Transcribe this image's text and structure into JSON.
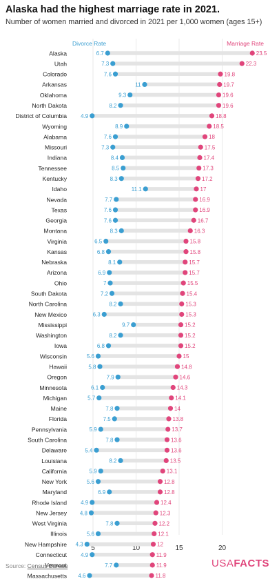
{
  "header": {
    "title": "Alaska had the highest marriage rate in 2021.",
    "subtitle": "Number of women married and divorced in 2021 per 1,000 women (ages 15+)"
  },
  "footer": {
    "source_prefix": "Source: ",
    "source_link": "Census Bureau",
    "logo_usa": "USA",
    "logo_facts": "FACTS"
  },
  "colors": {
    "divorce": "#3a9ed1",
    "marriage": "#e0457b",
    "track": "#e4e4e4",
    "grid": "#e9e9e9"
  },
  "chart_data": {
    "type": "dot-range",
    "xlim": [
      2.2,
      25.4
    ],
    "x_ticks": [
      5,
      10,
      15,
      20
    ],
    "grid": true,
    "legend_placement": "top",
    "series": [
      {
        "name": "Divorce Rate",
        "key": "divorce"
      },
      {
        "name": "Marriage Rate",
        "key": "marriage"
      }
    ],
    "rows": [
      {
        "state": "Alaska",
        "divorce": 6.7,
        "marriage": 23.5
      },
      {
        "state": "Utah",
        "divorce": 7.3,
        "marriage": 22.3
      },
      {
        "state": "Colorado",
        "divorce": 7.6,
        "marriage": 19.8
      },
      {
        "state": "Arkansas",
        "divorce": 11,
        "marriage": 19.7
      },
      {
        "state": "Oklahoma",
        "divorce": 9.3,
        "marriage": 19.6
      },
      {
        "state": "North Dakota",
        "divorce": 8.2,
        "marriage": 19.6
      },
      {
        "state": "District of Columbia",
        "divorce": 4.9,
        "marriage": 18.8
      },
      {
        "state": "Wyoming",
        "divorce": 8.9,
        "marriage": 18.5
      },
      {
        "state": "Alabama",
        "divorce": 7.6,
        "marriage": 18
      },
      {
        "state": "Missouri",
        "divorce": 7.3,
        "marriage": 17.5
      },
      {
        "state": "Indiana",
        "divorce": 8.4,
        "marriage": 17.4
      },
      {
        "state": "Tennessee",
        "divorce": 8.5,
        "marriage": 17.3
      },
      {
        "state": "Kentucky",
        "divorce": 8.3,
        "marriage": 17.2
      },
      {
        "state": "Idaho",
        "divorce": 11.1,
        "marriage": 17
      },
      {
        "state": "Nevada",
        "divorce": 7.7,
        "marriage": 16.9
      },
      {
        "state": "Texas",
        "divorce": 7.6,
        "marriage": 16.9
      },
      {
        "state": "Georgia",
        "divorce": 7.6,
        "marriage": 16.7
      },
      {
        "state": "Montana",
        "divorce": 8.3,
        "marriage": 16.3
      },
      {
        "state": "Virginia",
        "divorce": 6.5,
        "marriage": 15.8
      },
      {
        "state": "Kansas",
        "divorce": 6.8,
        "marriage": 15.8
      },
      {
        "state": "Nebraska",
        "divorce": 8.1,
        "marriage": 15.7
      },
      {
        "state": "Arizona",
        "divorce": 6.9,
        "marriage": 15.7
      },
      {
        "state": "Ohio",
        "divorce": 7,
        "marriage": 15.5
      },
      {
        "state": "South Dakota",
        "divorce": 7.2,
        "marriage": 15.4
      },
      {
        "state": "North Carolina",
        "divorce": 8.2,
        "marriage": 15.3
      },
      {
        "state": "New Mexico",
        "divorce": 6.3,
        "marriage": 15.3
      },
      {
        "state": "Mississippi",
        "divorce": 9.7,
        "marriage": 15.2
      },
      {
        "state": "Washington",
        "divorce": 8.2,
        "marriage": 15.2
      },
      {
        "state": "Iowa",
        "divorce": 6.8,
        "marriage": 15.2
      },
      {
        "state": "Wisconsin",
        "divorce": 5.6,
        "marriage": 15
      },
      {
        "state": "Hawaii",
        "divorce": 5.8,
        "marriage": 14.8
      },
      {
        "state": "Oregon",
        "divorce": 7.9,
        "marriage": 14.6
      },
      {
        "state": "Minnesota",
        "divorce": 6.1,
        "marriage": 14.3
      },
      {
        "state": "Michigan",
        "divorce": 5.7,
        "marriage": 14.1
      },
      {
        "state": "Maine",
        "divorce": 7.8,
        "marriage": 14
      },
      {
        "state": "Florida",
        "divorce": 7.5,
        "marriage": 13.8
      },
      {
        "state": "Pennsylvania",
        "divorce": 5.9,
        "marriage": 13.7
      },
      {
        "state": "South Carolina",
        "divorce": 7.8,
        "marriage": 13.6
      },
      {
        "state": "Delaware",
        "divorce": 5.4,
        "marriage": 13.6
      },
      {
        "state": "Louisiana",
        "divorce": 8.2,
        "marriage": 13.5
      },
      {
        "state": "California",
        "divorce": 5.9,
        "marriage": 13.1
      },
      {
        "state": "New York",
        "divorce": 5.6,
        "marriage": 12.8
      },
      {
        "state": "Maryland",
        "divorce": 6.9,
        "marriage": 12.8
      },
      {
        "state": "Rhode Island",
        "divorce": 4.9,
        "marriage": 12.4
      },
      {
        "state": "New Jersey",
        "divorce": 4.8,
        "marriage": 12.3
      },
      {
        "state": "West Virginia",
        "divorce": 7.8,
        "marriage": 12.2
      },
      {
        "state": "Illinois",
        "divorce": 5.6,
        "marriage": 12.1
      },
      {
        "state": "New Hampshire",
        "divorce": 4.3,
        "marriage": 12
      },
      {
        "state": "Connecticut",
        "divorce": 4.9,
        "marriage": 11.9
      },
      {
        "state": "Vermont",
        "divorce": 7.7,
        "marriage": 11.9
      },
      {
        "state": "Massachusetts",
        "divorce": 4.6,
        "marriage": 11.8
      }
    ]
  }
}
